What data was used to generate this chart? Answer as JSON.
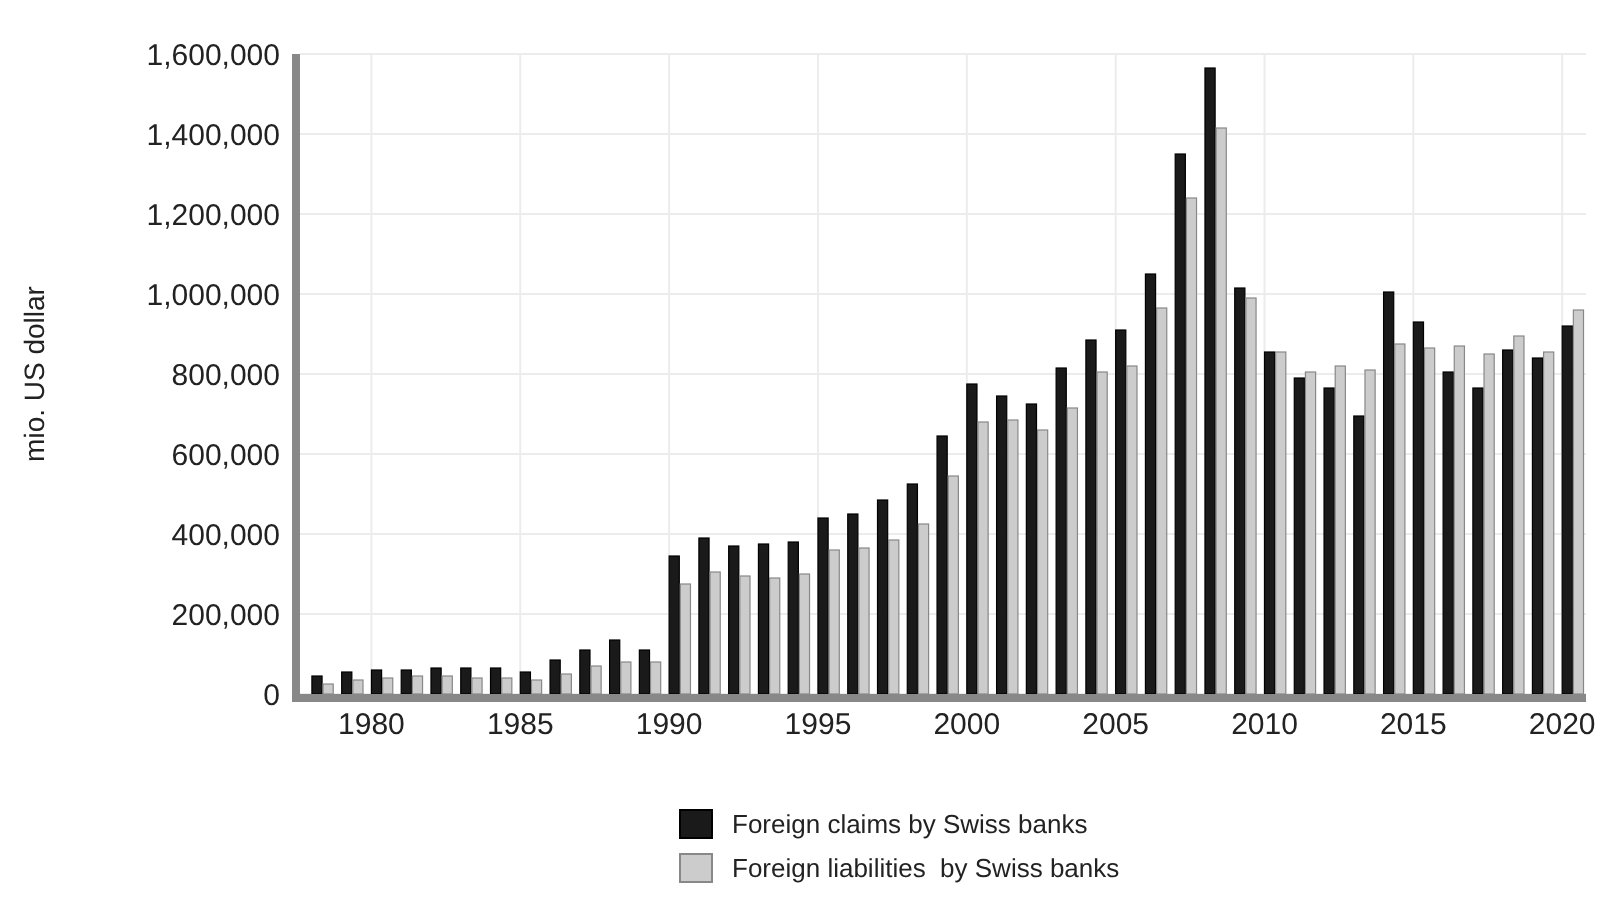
{
  "chart_data": {
    "type": "bar",
    "ylabel": "mio. US dollar",
    "x": [
      1978,
      1979,
      1980,
      1981,
      1982,
      1983,
      1984,
      1985,
      1986,
      1987,
      1988,
      1989,
      1990,
      1991,
      1992,
      1993,
      1994,
      1995,
      1996,
      1997,
      1998,
      1999,
      2000,
      2001,
      2002,
      2003,
      2004,
      2005,
      2006,
      2007,
      2008,
      2009,
      2010,
      2011,
      2012,
      2013,
      2014,
      2015,
      2016,
      2017,
      2018,
      2019,
      2020
    ],
    "series": [
      {
        "name": "Foreign claims by Swiss banks",
        "color": "#1a1a1a",
        "values": [
          45000,
          55000,
          60000,
          60000,
          65000,
          65000,
          65000,
          55000,
          85000,
          110000,
          135000,
          110000,
          345000,
          390000,
          370000,
          375000,
          380000,
          440000,
          450000,
          485000,
          525000,
          645000,
          775000,
          745000,
          725000,
          815000,
          885000,
          910000,
          1050000,
          1350000,
          1565000,
          1015000,
          855000,
          790000,
          765000,
          695000,
          1005000,
          930000,
          805000,
          765000,
          860000,
          840000,
          920000
        ]
      },
      {
        "name": "Foreign liabilities  by Swiss banks",
        "color": "#cccccc",
        "values": [
          25000,
          35000,
          40000,
          45000,
          45000,
          40000,
          40000,
          35000,
          50000,
          70000,
          80000,
          80000,
          275000,
          305000,
          295000,
          290000,
          300000,
          360000,
          365000,
          385000,
          425000,
          545000,
          680000,
          685000,
          660000,
          715000,
          805000,
          820000,
          965000,
          1240000,
          1415000,
          990000,
          855000,
          805000,
          820000,
          810000,
          875000,
          865000,
          870000,
          850000,
          895000,
          855000,
          960000
        ]
      }
    ],
    "xlim": [
      1977.6,
      2020.8
    ],
    "xticks": [
      1980,
      1985,
      1990,
      1995,
      2000,
      2005,
      2010,
      2015,
      2020
    ],
    "ylim": [
      0,
      1600000
    ],
    "yticks": [
      {
        "value": 0,
        "label": "0"
      },
      {
        "value": 200000,
        "label": "200,000"
      },
      {
        "value": 400000,
        "label": "400,000"
      },
      {
        "value": 600000,
        "label": "600,000"
      },
      {
        "value": 800000,
        "label": "800,000"
      },
      {
        "value": 1000000,
        "label": "1,000,000"
      },
      {
        "value": 1200000,
        "label": "1,200,000"
      },
      {
        "value": 1400000,
        "label": "1,400,000"
      },
      {
        "value": 1600000,
        "label": "1,600,000"
      }
    ],
    "grid": true,
    "legend": "bottom"
  }
}
